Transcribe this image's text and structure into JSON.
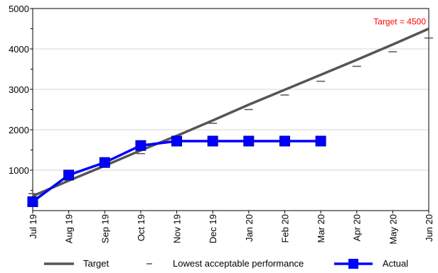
{
  "chart_data": {
    "type": "line",
    "categories": [
      "Jul 19",
      "Aug 19",
      "Sep 19",
      "Oct 19",
      "Nov 19",
      "Dec 19",
      "Jan 20",
      "Feb 20",
      "Mar 20",
      "Apr 20",
      "May 20",
      "Jun 20"
    ],
    "ylim": [
      0,
      5000
    ],
    "yticks": [
      1000,
      2000,
      3000,
      4000,
      5000
    ],
    "grid": true,
    "legend_position": "bottom",
    "series": [
      {
        "name": "Target",
        "kind": "line",
        "color": "#555555",
        "values": [
          360,
          740,
          1110,
          1490,
          1850,
          2230,
          2620,
          2990,
          3360,
          3730,
          4110,
          4500
        ]
      },
      {
        "name": "Lowest acceptable performance",
        "kind": "dash",
        "color": "#555555",
        "values": [
          420,
          760,
          1130,
          1410,
          1780,
          2160,
          2500,
          2860,
          3200,
          3570,
          3930,
          4270
        ]
      },
      {
        "name": "Actual",
        "kind": "line-square",
        "color": "#0000ff",
        "values": [
          220,
          880,
          1190,
          1610,
          1720,
          1720,
          1720,
          1720,
          1720,
          null,
          null,
          null
        ]
      }
    ],
    "annotations": [
      {
        "text": "Target = 4500",
        "color": "#ff0000",
        "category": "Jun 20",
        "value": 4500
      }
    ]
  }
}
